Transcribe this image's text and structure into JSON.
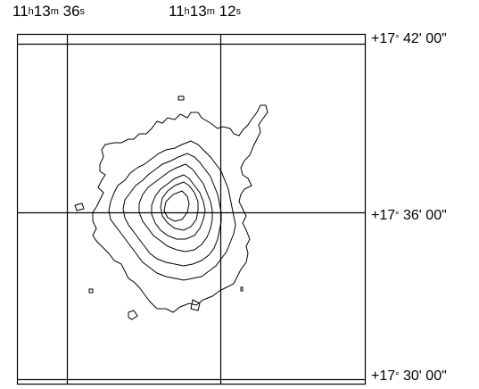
{
  "ra_labels": [
    {
      "h": "11",
      "h_unit": "h",
      "m": "13",
      "m_unit": "m",
      "s": "36",
      "s_unit": "s"
    },
    {
      "h": "11",
      "h_unit": "h",
      "m": "13",
      "m_unit": "m",
      "s": "12",
      "s_unit": "s"
    }
  ],
  "dec_labels": [
    {
      "deg": "+17",
      "deg_unit": "°",
      "rest": " 42' 00\""
    },
    {
      "deg": "+17",
      "deg_unit": "°",
      "rest": " 36' 00\""
    },
    {
      "deg": "+17",
      "deg_unit": "°",
      "rest": " 30' 00\""
    }
  ],
  "contour_count": 7
}
